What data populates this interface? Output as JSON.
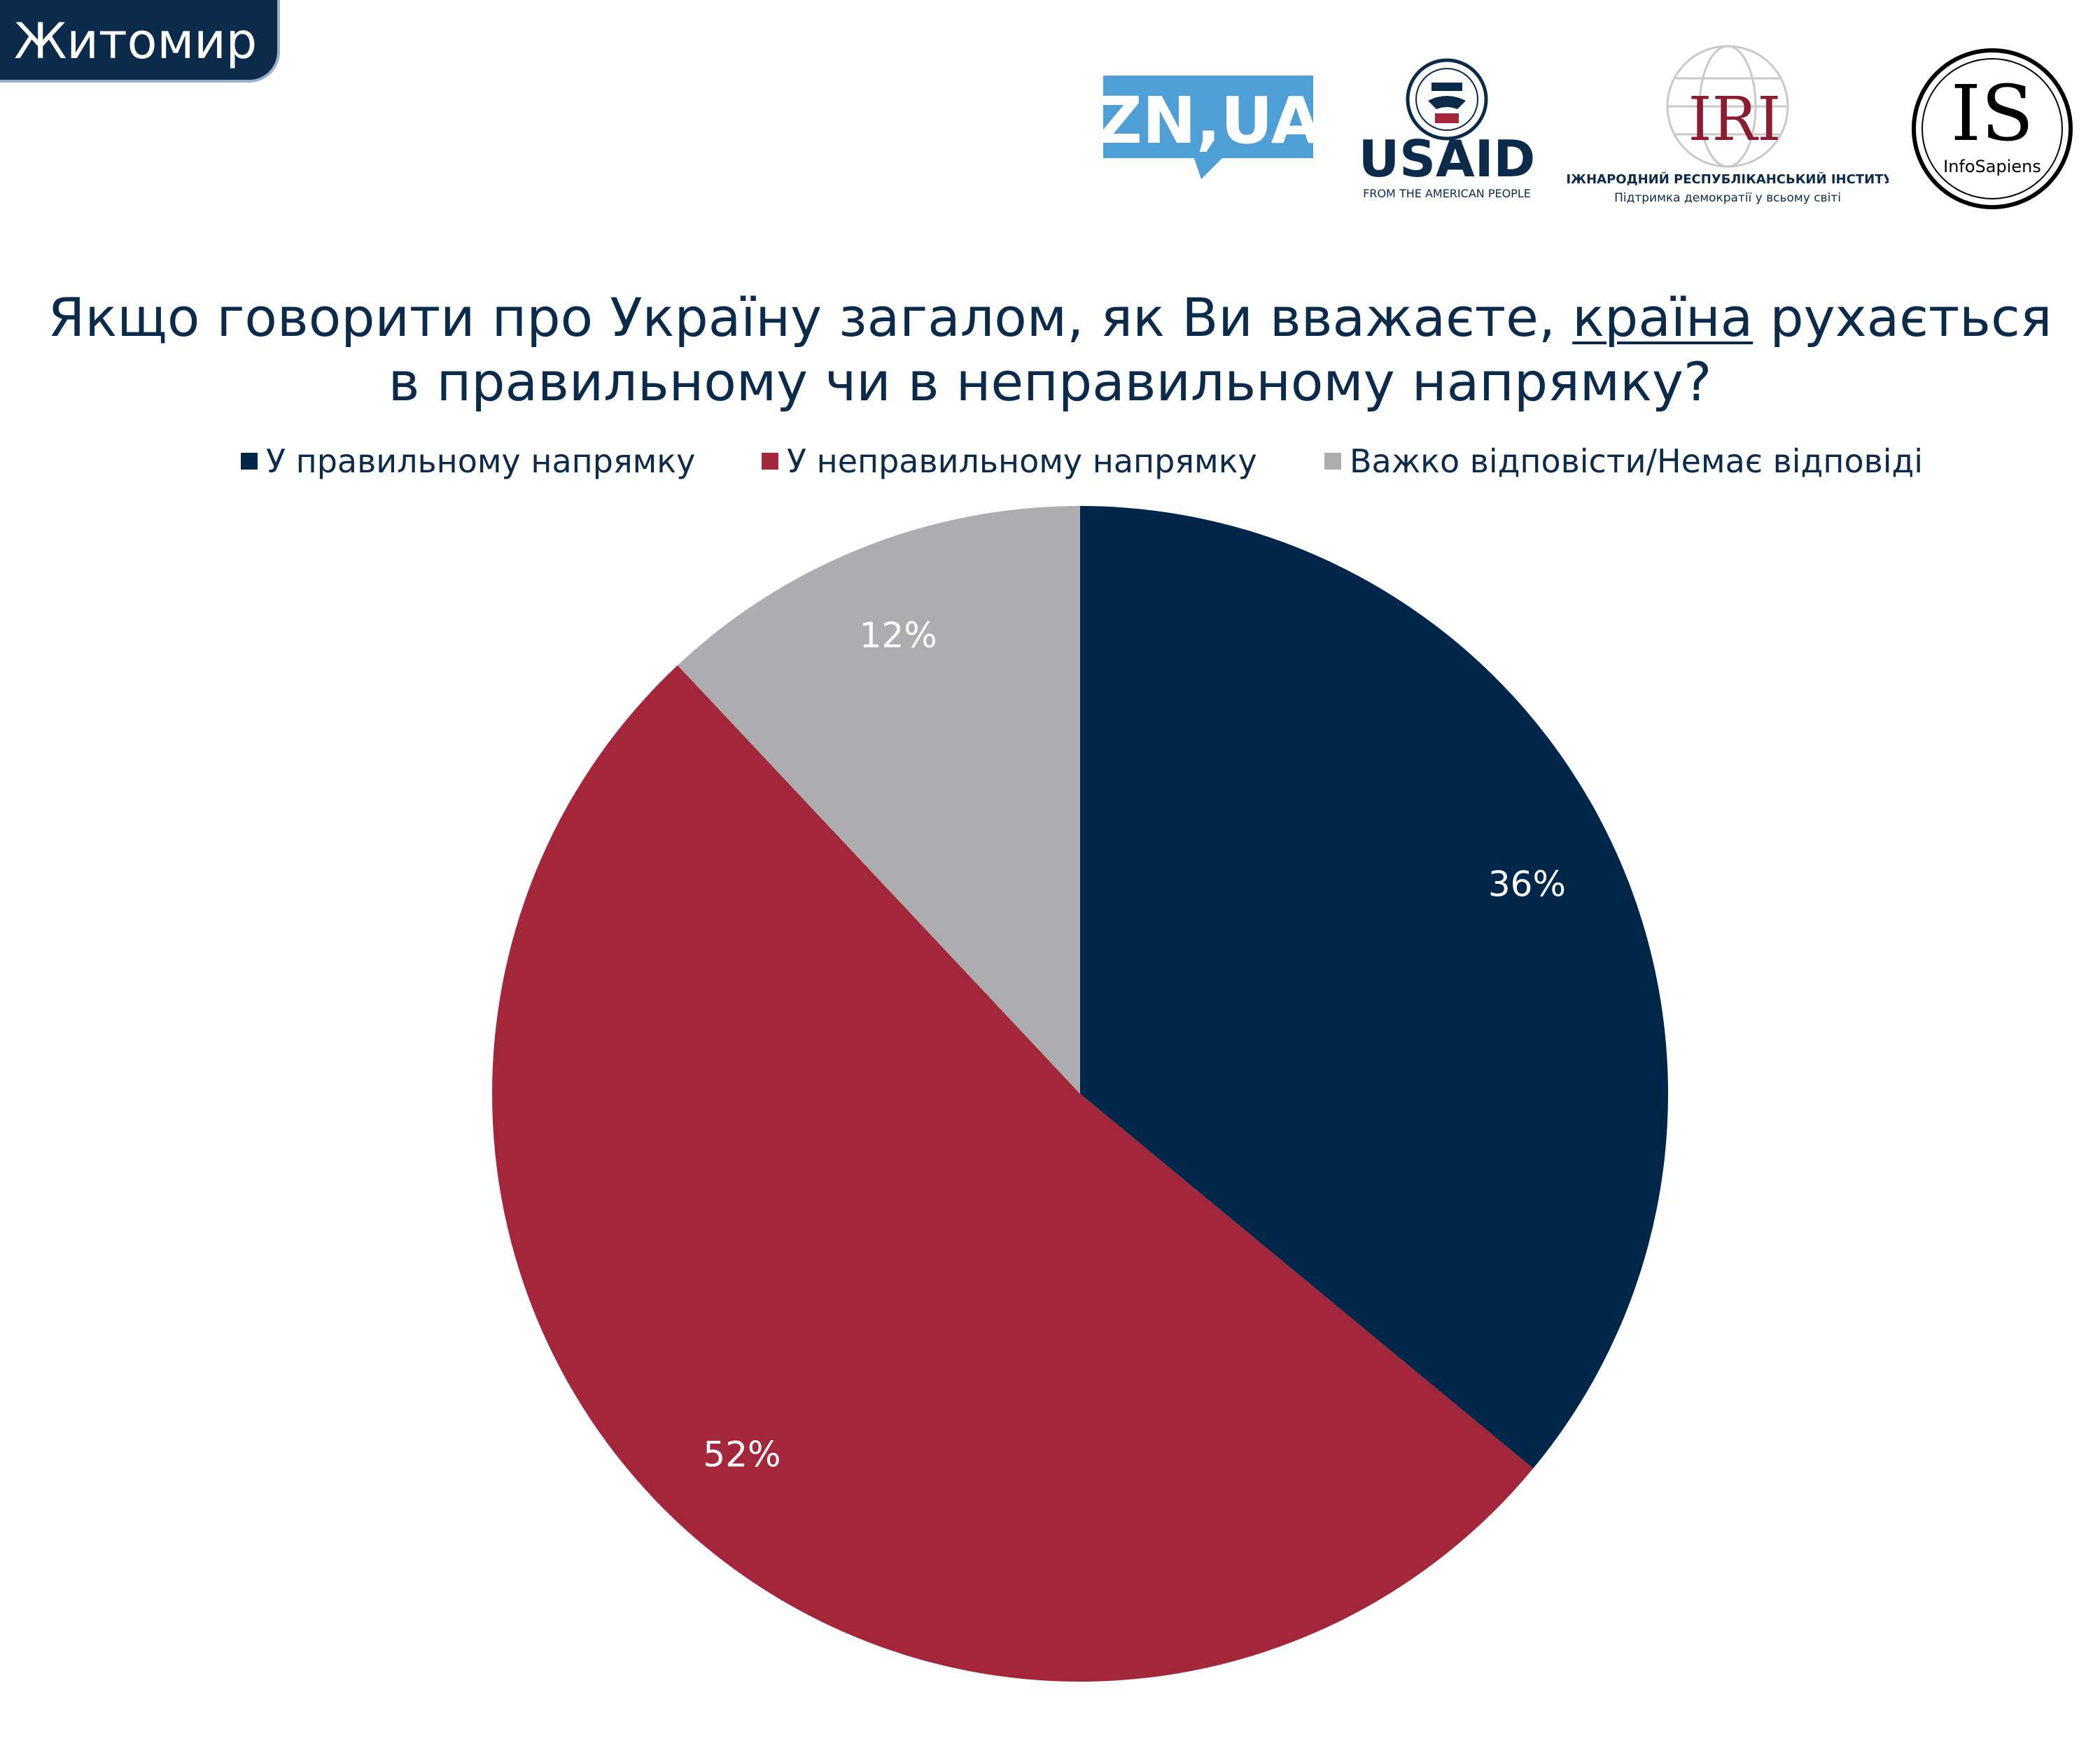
{
  "region": "Житомир",
  "logos": {
    "zn": "ZN,UA",
    "usaid": {
      "word": "USAID",
      "tagline": "FROM THE AMERICAN PEOPLE"
    },
    "iri": {
      "word": "IRI",
      "line1": "МІЖНАРОДНИЙ РЕСПУБЛІКАНСЬКИЙ ІНСТИТУТ",
      "line2": "Підтримка демократії у всьому світі"
    },
    "is": {
      "word": "IS",
      "tagline": "InfoSapiens"
    }
  },
  "colors": {
    "navy": "#00264a",
    "red": "#a3263a",
    "gray": "#adadaf"
  },
  "chart_data": {
    "type": "pie",
    "title_line1_a": "Якщо говорити про Україну загалом, як Ви вважаєте, ",
    "title_line1_u": "країна",
    "title_line1_b": " рухається",
    "title_line2": "в правильному чи в неправильному напрямку?",
    "legend_position": "top",
    "slices": [
      {
        "name": "У правильному напрямку",
        "value": 36,
        "label": "36%",
        "color": "#00264a"
      },
      {
        "name": "У неправильному напрямку",
        "value": 52,
        "label": "52%",
        "color": "#a3263a"
      },
      {
        "name": "Важко відповісти/Немає відповіді",
        "value": 12,
        "label": "12%",
        "color": "#adadaf"
      }
    ]
  }
}
